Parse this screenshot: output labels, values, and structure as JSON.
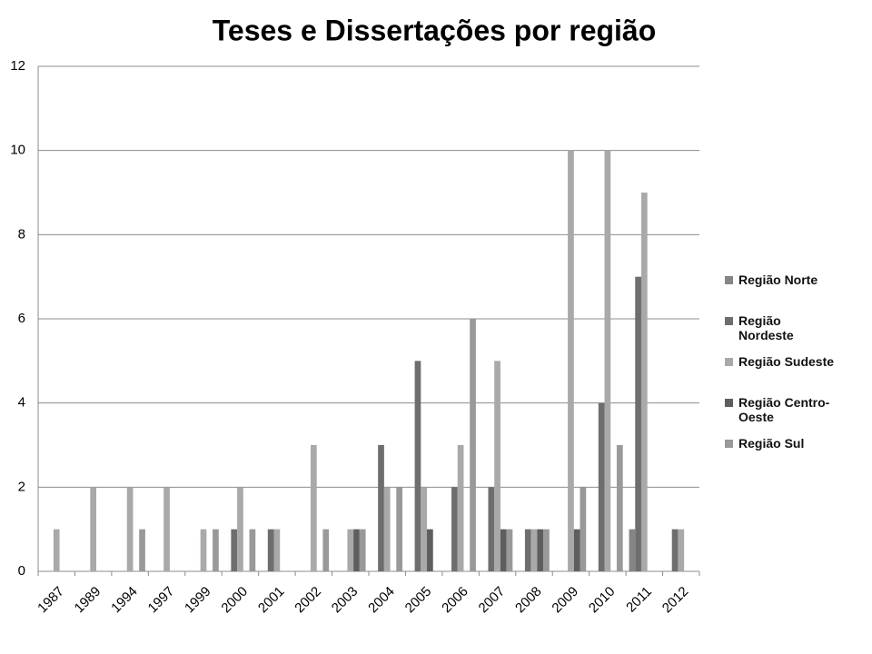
{
  "chart_data": {
    "type": "bar",
    "title": "Teses e Dissertações por região",
    "categories": [
      "1987",
      "1989",
      "1994",
      "1997",
      "1999",
      "2000",
      "2001",
      "2002",
      "2003",
      "2004",
      "2005",
      "2006",
      "2007",
      "2008",
      "2009",
      "2010",
      "2011",
      "2012"
    ],
    "series": [
      {
        "name": "Região Norte",
        "color": "#858585",
        "values": [
          0,
          0,
          0,
          0,
          0,
          0,
          0,
          0,
          0,
          0,
          0,
          0,
          0,
          0,
          0,
          0,
          1,
          0
        ]
      },
      {
        "name": "Região Nordeste",
        "color": "#6e6e6e",
        "values": [
          0,
          0,
          0,
          0,
          0,
          1,
          1,
          0,
          0,
          3,
          5,
          2,
          2,
          1,
          0,
          4,
          7,
          1
        ]
      },
      {
        "name": "Região Sudeste",
        "color": "#a9a9a9",
        "values": [
          1,
          2,
          2,
          2,
          1,
          2,
          1,
          3,
          1,
          2,
          2,
          3,
          5,
          1,
          10,
          10,
          9,
          1
        ]
      },
      {
        "name": "Região Centro-Oeste",
        "color": "#5e5e5e",
        "values": [
          0,
          0,
          0,
          0,
          0,
          0,
          0,
          0,
          1,
          0,
          1,
          0,
          1,
          1,
          1,
          0,
          0,
          0
        ]
      },
      {
        "name": "Região Sul",
        "color": "#999999",
        "values": [
          0,
          0,
          1,
          0,
          1,
          1,
          0,
          1,
          1,
          2,
          0,
          6,
          1,
          1,
          2,
          3,
          0,
          0
        ]
      }
    ],
    "ylim": [
      0,
      12
    ],
    "yticks": [
      0,
      2,
      4,
      6,
      8,
      10,
      12
    ],
    "grid": true,
    "legend": "right"
  }
}
